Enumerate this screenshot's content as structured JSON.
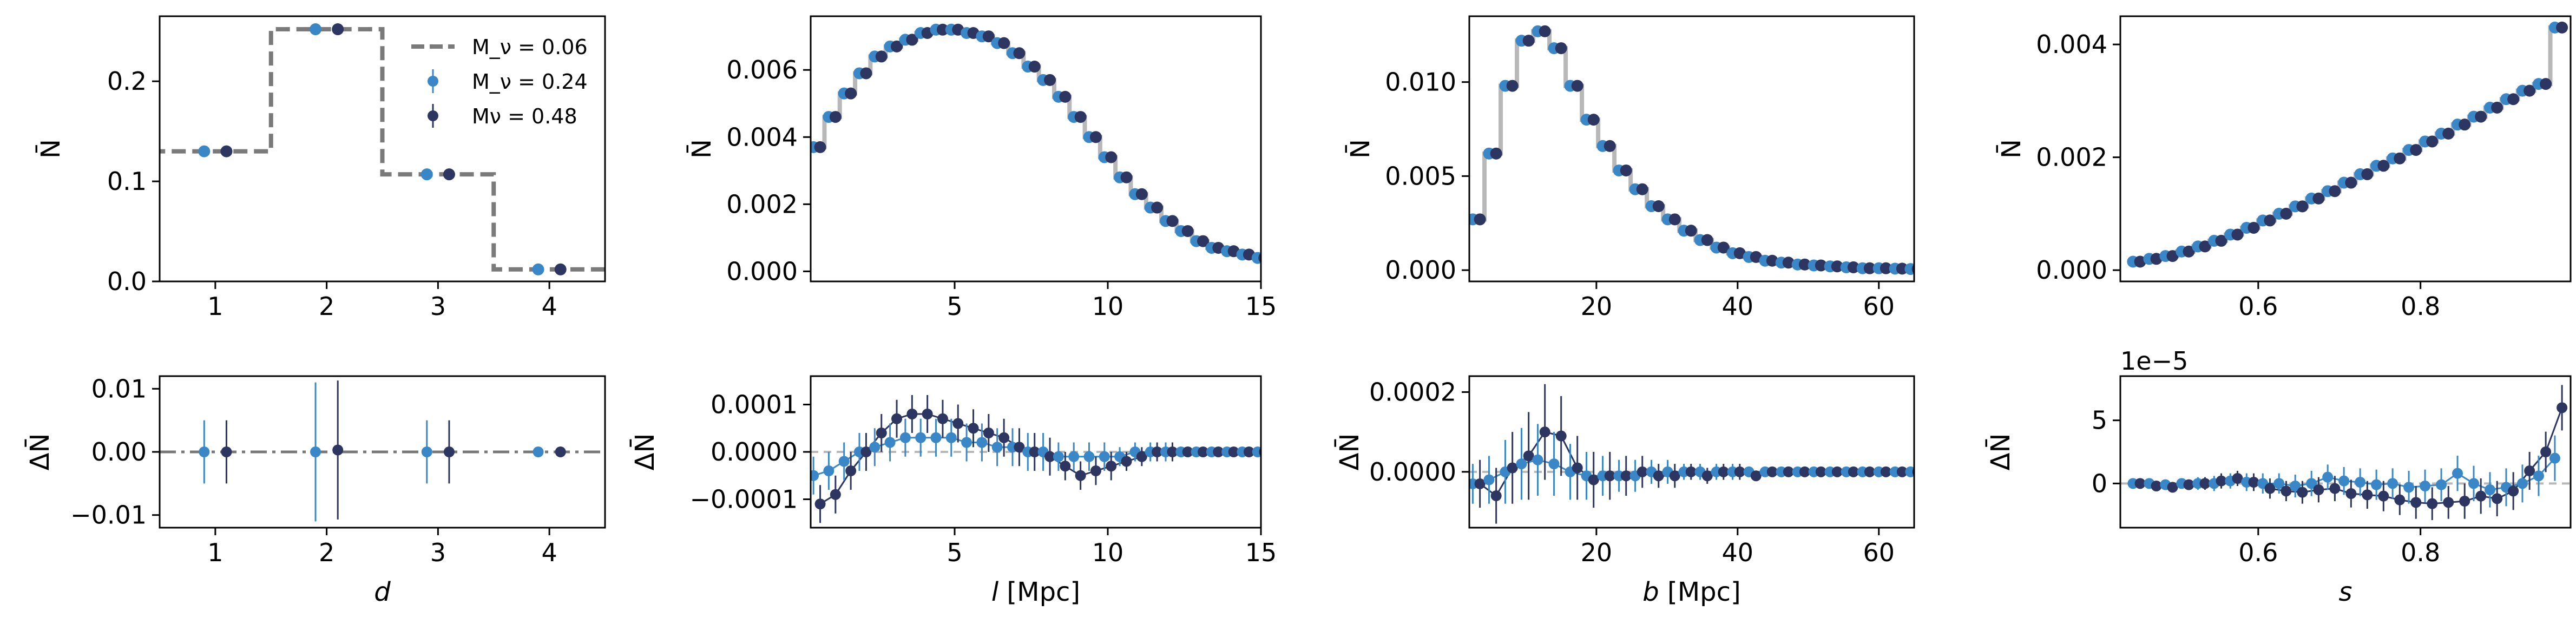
{
  "chart_data": {
    "type": "line",
    "colors": {
      "ref": "#7a7a7a",
      "ref_light": "#b8b8b8",
      "m024": "#3a87c8",
      "m048": "#2d3561",
      "zero_line": "#777777"
    },
    "legend": {
      "placement": "top-right of first panel",
      "entries": [
        {
          "label": "M_ν = 0.06",
          "style": "dashed"
        },
        {
          "label": "M_ν = 0.24",
          "style": "errorbar"
        },
        {
          "label": "Mν = 0.48",
          "style": "errorbar"
        }
      ]
    },
    "panels": [
      {
        "name": "d",
        "xlabel": "d",
        "xlabel_italic": true,
        "unit": "",
        "ylabel": "N̄",
        "dylabel": "ΔN̄",
        "xlim": [
          0.5,
          4.5
        ],
        "xticks": [
          1,
          2,
          3,
          4
        ],
        "xtick_labels": [
          "1",
          "2",
          "3",
          "4"
        ],
        "ylim": [
          0,
          0.265
        ],
        "yticks": [
          0,
          0.1,
          0.2
        ],
        "ytick_labels": [
          "0.0",
          "0.1",
          "0.2"
        ],
        "dylim": [
          -0.012,
          0.012
        ],
        "dyticks": [
          -0.01,
          0,
          0.01
        ],
        "dytick_labels": [
          "−0.01",
          "0.00",
          "0.01"
        ],
        "dy_exponent": "",
        "step_style": "dashed_dark",
        "ref_dashdot": true,
        "connect_lines": false,
        "x": [
          1,
          2,
          3,
          4
        ],
        "ref": [
          0.13,
          0.252,
          0.107,
          0.012
        ],
        "m024": [
          0.13,
          0.252,
          0.107,
          0.012
        ],
        "m048": [
          0.13,
          0.252,
          0.107,
          0.012
        ],
        "d024": [
          0.0,
          0.0,
          0.0,
          0.0
        ],
        "e024": [
          0.005,
          0.011,
          0.005,
          0.0005
        ],
        "d048": [
          0.0,
          0.0003,
          0.0,
          0.0
        ],
        "e048": [
          0.005,
          0.011,
          0.005,
          0.0005
        ]
      },
      {
        "name": "l",
        "xlabel": "l",
        "xlabel_italic": true,
        "unit": " [Mpc]",
        "ylabel": "N̄",
        "dylabel": "ΔN̄",
        "xlim": [
          0.3,
          15
        ],
        "xticks": [
          5,
          10,
          15
        ],
        "xtick_labels": [
          "5",
          "10",
          "15"
        ],
        "ylim": [
          -0.0003,
          0.0076
        ],
        "yticks": [
          0,
          0.002,
          0.004,
          0.006
        ],
        "ytick_labels": [
          "0.000",
          "0.002",
          "0.004",
          "0.006"
        ],
        "dylim": [
          -0.00016,
          0.00016
        ],
        "dyticks": [
          -0.0001,
          0,
          0.0001
        ],
        "dytick_labels": [
          "−0.0001",
          "0.0000",
          "0.0001"
        ],
        "dy_exponent": "",
        "step_style": "solid_light",
        "ref_dashdot": false,
        "connect_lines": true,
        "x": [
          0.5,
          1.0,
          1.5,
          2.0,
          2.5,
          3.0,
          3.5,
          4.0,
          4.5,
          5.0,
          5.5,
          6.0,
          6.5,
          7.0,
          7.5,
          8.0,
          8.5,
          9.0,
          9.5,
          10.0,
          10.5,
          11.0,
          11.5,
          12.0,
          12.5,
          13.0,
          13.5,
          14.0,
          14.5,
          15.0
        ],
        "ref": [
          0.0037,
          0.0046,
          0.0053,
          0.0059,
          0.0064,
          0.0067,
          0.0069,
          0.0071,
          0.0072,
          0.0072,
          0.0071,
          0.007,
          0.0068,
          0.0065,
          0.0061,
          0.0057,
          0.0052,
          0.0046,
          0.004,
          0.0034,
          0.0028,
          0.0023,
          0.0019,
          0.0015,
          0.0012,
          0.0009,
          0.0007,
          0.0006,
          0.0005,
          0.0004
        ],
        "m024": [
          0.0037,
          0.0046,
          0.0053,
          0.0059,
          0.0064,
          0.0067,
          0.0069,
          0.0071,
          0.0072,
          0.0072,
          0.0071,
          0.007,
          0.0068,
          0.0065,
          0.0061,
          0.0057,
          0.0052,
          0.0046,
          0.004,
          0.0034,
          0.0028,
          0.0023,
          0.0019,
          0.0015,
          0.0012,
          0.0009,
          0.0007,
          0.0006,
          0.0005,
          0.0004
        ],
        "m048": [
          0.0037,
          0.0046,
          0.0053,
          0.0059,
          0.0064,
          0.0067,
          0.0069,
          0.0071,
          0.0072,
          0.0072,
          0.0071,
          0.007,
          0.0068,
          0.0065,
          0.0061,
          0.0057,
          0.0052,
          0.0046,
          0.004,
          0.0034,
          0.0028,
          0.0023,
          0.0019,
          0.0015,
          0.0012,
          0.0009,
          0.0007,
          0.0006,
          0.0005,
          0.0004
        ],
        "d024": [
          -5e-05,
          -4e-05,
          -2e-05,
          0.0,
          1e-05,
          2e-05,
          3e-05,
          3e-05,
          3e-05,
          3e-05,
          2e-05,
          2e-05,
          1e-05,
          1e-05,
          0.0,
          0.0,
          -1e-05,
          -1e-05,
          -1e-05,
          -1e-05,
          -1e-05,
          0.0,
          0.0,
          0.0,
          0.0,
          0.0,
          0.0,
          0.0,
          0.0,
          0.0
        ],
        "e024": [
          4e-05,
          4e-05,
          4e-05,
          4e-05,
          4e-05,
          4e-05,
          4e-05,
          4e-05,
          4e-05,
          4e-05,
          4e-05,
          4e-05,
          4e-05,
          4e-05,
          4e-05,
          4e-05,
          3e-05,
          3e-05,
          3e-05,
          3e-05,
          2e-05,
          2e-05,
          2e-05,
          2e-05,
          1e-05,
          1e-05,
          1e-05,
          1e-05,
          1e-05,
          1e-05
        ],
        "d048": [
          -0.00011,
          -9e-05,
          -4e-05,
          0.0,
          4e-05,
          7e-05,
          8e-05,
          8e-05,
          7e-05,
          6e-05,
          5e-05,
          4e-05,
          3e-05,
          1e-05,
          0.0,
          -1e-05,
          -3e-05,
          -5e-05,
          -4e-05,
          -3e-05,
          -2e-05,
          -1e-05,
          0.0,
          0.0,
          0.0,
          0.0,
          0.0,
          0.0,
          0.0,
          0.0
        ],
        "e048": [
          4e-05,
          4e-05,
          4e-05,
          4e-05,
          4e-05,
          4e-05,
          4e-05,
          4e-05,
          4e-05,
          4e-05,
          4e-05,
          4e-05,
          4e-05,
          4e-05,
          4e-05,
          4e-05,
          3e-05,
          3e-05,
          3e-05,
          3e-05,
          2e-05,
          2e-05,
          2e-05,
          2e-05,
          1e-05,
          1e-05,
          1e-05,
          1e-05,
          1e-05,
          1e-05
        ]
      },
      {
        "name": "b",
        "xlabel": "b",
        "xlabel_italic": true,
        "unit": " [Mpc]",
        "ylabel": "N̄",
        "dylabel": "ΔN̄",
        "xlim": [
          2,
          65
        ],
        "xticks": [
          20,
          40,
          60
        ],
        "xtick_labels": [
          "20",
          "40",
          "60"
        ],
        "ylim": [
          -0.0006,
          0.0135
        ],
        "yticks": [
          0,
          0.005,
          0.01
        ],
        "ytick_labels": [
          "0.000",
          "0.005",
          "0.010"
        ],
        "dylim": [
          -0.00014,
          0.00024
        ],
        "dyticks": [
          0,
          0.0002
        ],
        "dytick_labels": [
          "0.0000",
          "0.0002"
        ],
        "dy_exponent": "",
        "step_style": "solid_light",
        "ref_dashdot": false,
        "connect_lines": true,
        "x": [
          3,
          5.3,
          7.6,
          9.9,
          12.2,
          14.5,
          16.8,
          19.1,
          21.4,
          23.7,
          26,
          28.3,
          30.6,
          32.9,
          35.2,
          37.5,
          39.8,
          42.1,
          44.4,
          46.7,
          49,
          51.3,
          53.6,
          55.9,
          58.2,
          60.5,
          62.8,
          65
        ],
        "ref": [
          0.0027,
          0.0062,
          0.0098,
          0.0122,
          0.0127,
          0.0118,
          0.0098,
          0.008,
          0.0066,
          0.0053,
          0.0043,
          0.0034,
          0.0027,
          0.0021,
          0.0016,
          0.0012,
          0.0009,
          0.0007,
          0.0005,
          0.0004,
          0.0003,
          0.00025,
          0.0002,
          0.00015,
          0.0001,
          0.0001,
          8e-05,
          6e-05
        ],
        "m024": [
          0.0027,
          0.0062,
          0.0098,
          0.0122,
          0.0127,
          0.0118,
          0.0098,
          0.008,
          0.0066,
          0.0053,
          0.0043,
          0.0034,
          0.0027,
          0.0021,
          0.0016,
          0.0012,
          0.0009,
          0.0007,
          0.0005,
          0.0004,
          0.0003,
          0.00025,
          0.0002,
          0.00015,
          0.0001,
          0.0001,
          8e-05,
          6e-05
        ],
        "m048": [
          0.0027,
          0.0062,
          0.0098,
          0.0122,
          0.0127,
          0.0118,
          0.0098,
          0.008,
          0.0066,
          0.0053,
          0.0043,
          0.0034,
          0.0027,
          0.0021,
          0.0016,
          0.0012,
          0.0009,
          0.0007,
          0.0005,
          0.0004,
          0.0003,
          0.00025,
          0.0002,
          0.00015,
          0.0001,
          0.0001,
          8e-05,
          6e-05
        ],
        "d024": [
          -3e-05,
          -2e-05,
          0.0,
          2e-05,
          3e-05,
          2e-05,
          0.0,
          -1e-05,
          -1e-05,
          -1e-05,
          -1e-05,
          0.0,
          0.0,
          0.0,
          0.0,
          0.0,
          0.0,
          0.0,
          0.0,
          0.0,
          0.0,
          0.0,
          0.0,
          0.0,
          0.0,
          0.0,
          0.0,
          0.0
        ],
        "e024": [
          5e-05,
          6e-05,
          8e-05,
          9e-05,
          9e-05,
          8e-05,
          7e-05,
          6e-05,
          5e-05,
          4e-05,
          4e-05,
          3e-05,
          3e-05,
          2e-05,
          2e-05,
          2e-05,
          2e-05,
          1e-05,
          1e-05,
          1e-05,
          1e-05,
          1e-05,
          1e-05,
          1e-05,
          1e-05,
          1e-05,
          1e-05,
          1e-05
        ],
        "d048": [
          -3e-05,
          -6e-05,
          1e-05,
          4e-05,
          0.0001,
          9e-05,
          1e-05,
          -2e-05,
          -1e-05,
          -1e-05,
          0.0,
          -1e-05,
          -1e-05,
          0.0,
          -1e-05,
          0.0,
          0.0,
          -1e-05,
          0.0,
          0.0,
          0.0,
          0.0,
          0.0,
          0.0,
          0.0,
          0.0,
          0.0,
          0.0
        ],
        "e048": [
          6e-05,
          7e-05,
          9e-05,
          0.00011,
          0.00012,
          0.0001,
          8e-05,
          7e-05,
          6e-05,
          5e-05,
          4e-05,
          3e-05,
          3e-05,
          2e-05,
          2e-05,
          2e-05,
          2e-05,
          1e-05,
          1e-05,
          1e-05,
          1e-05,
          1e-05,
          1e-05,
          1e-05,
          1e-05,
          1e-05,
          1e-05,
          1e-05
        ]
      },
      {
        "name": "s",
        "xlabel": "s",
        "xlabel_italic": true,
        "unit": "",
        "ylabel": "N̄",
        "dylabel": "ΔN̄",
        "xlim": [
          0.43,
          0.985
        ],
        "xticks": [
          0.6,
          0.8
        ],
        "xtick_labels": [
          "0.6",
          "0.8"
        ],
        "ylim": [
          -0.0002,
          0.0045
        ],
        "yticks": [
          0,
          0.002,
          0.004
        ],
        "ytick_labels": [
          "0.000",
          "0.002",
          "0.004"
        ],
        "dylim": [
          -3.5,
          8.5
        ],
        "dyticks": [
          0,
          5
        ],
        "dytick_labels": [
          "0",
          "5"
        ],
        "dy_exponent": "1e−5",
        "step_style": "solid_light",
        "ref_dashdot": false,
        "connect_lines": true,
        "x": [
          0.45,
          0.47,
          0.49,
          0.51,
          0.53,
          0.55,
          0.57,
          0.59,
          0.61,
          0.63,
          0.65,
          0.67,
          0.69,
          0.71,
          0.73,
          0.75,
          0.77,
          0.79,
          0.81,
          0.83,
          0.85,
          0.87,
          0.89,
          0.91,
          0.93,
          0.95,
          0.97
        ],
        "ref": [
          0.00015,
          0.0002,
          0.00025,
          0.00033,
          0.00042,
          0.00052,
          0.00063,
          0.00075,
          0.00088,
          0.001,
          0.00113,
          0.00127,
          0.0014,
          0.00155,
          0.0017,
          0.00185,
          0.00198,
          0.00213,
          0.00228,
          0.00242,
          0.00258,
          0.00272,
          0.00288,
          0.00303,
          0.00318,
          0.0033,
          0.0043
        ],
        "m024": [
          0.00015,
          0.0002,
          0.00025,
          0.00033,
          0.00042,
          0.00052,
          0.00063,
          0.00075,
          0.00088,
          0.001,
          0.00113,
          0.00127,
          0.0014,
          0.00155,
          0.0017,
          0.00185,
          0.00198,
          0.00213,
          0.00228,
          0.00242,
          0.00258,
          0.00272,
          0.00288,
          0.00303,
          0.00318,
          0.0033,
          0.0043
        ],
        "m048": [
          0.00015,
          0.0002,
          0.00025,
          0.00033,
          0.00042,
          0.00052,
          0.00063,
          0.00075,
          0.00088,
          0.001,
          0.00113,
          0.00127,
          0.0014,
          0.00155,
          0.0017,
          0.00185,
          0.00198,
          0.00213,
          0.00228,
          0.00242,
          0.00258,
          0.00272,
          0.00288,
          0.00303,
          0.00318,
          0.0033,
          0.0043
        ],
        "d024": [
          0.0,
          0.0,
          -0.1,
          0.0,
          0.0,
          0.0,
          0.2,
          0.1,
          0.0,
          0.0,
          -0.2,
          0.0,
          0.5,
          0.2,
          0.1,
          -0.1,
          0.0,
          -0.3,
          -0.2,
          -0.1,
          0.8,
          0.0,
          -0.5,
          -0.3,
          0.0,
          0.6,
          2.0
        ],
        "e024": [
          0.3,
          0.3,
          0.4,
          0.4,
          0.5,
          0.6,
          0.6,
          0.7,
          0.8,
          0.8,
          0.9,
          1.0,
          1.0,
          1.1,
          1.1,
          1.2,
          1.2,
          1.3,
          1.3,
          1.3,
          1.4,
          1.4,
          1.4,
          1.5,
          1.5,
          1.6,
          1.8
        ],
        "d048": [
          0.0,
          -0.2,
          -0.3,
          -0.1,
          0.0,
          0.2,
          0.4,
          0.1,
          -0.4,
          -0.6,
          -0.7,
          -0.5,
          -0.4,
          -0.8,
          -0.9,
          -1.0,
          -1.3,
          -1.5,
          -1.6,
          -1.5,
          -1.4,
          -1.0,
          -1.2,
          -0.6,
          1.0,
          2.5,
          6.0
        ],
        "e048": [
          0.3,
          0.3,
          0.4,
          0.4,
          0.5,
          0.6,
          0.6,
          0.7,
          0.8,
          0.8,
          0.9,
          1.0,
          1.0,
          1.1,
          1.1,
          1.2,
          1.2,
          1.3,
          1.3,
          1.3,
          1.4,
          1.4,
          1.4,
          1.5,
          1.5,
          1.6,
          1.8
        ]
      }
    ]
  }
}
